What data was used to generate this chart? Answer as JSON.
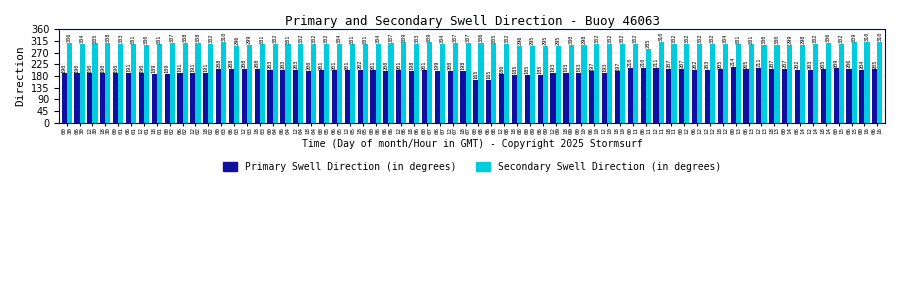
{
  "title": "Primary and Secondary Swell Direction - Buoy 46063",
  "xlabel": "Time (Day of month/Hour in GMT) - Copyright 2025 Stormsurf",
  "ylabel": "Direction",
  "ylim": [
    0,
    360
  ],
  "yticks": [
    0,
    45,
    90,
    135,
    180,
    225,
    270,
    315,
    360
  ],
  "primary_color": "#1010A0",
  "secondary_color": "#00CCDD",
  "background_color": "#FFFFFF",
  "primary_label": "Primary Swell Direction (in degrees)",
  "secondary_label": "Secondary Swell Direction (in degrees)",
  "primary_values": [
    190,
    190,
    190,
    190,
    190,
    191,
    190,
    189,
    189,
    191,
    191,
    191,
    208,
    208,
    208,
    208,
    203,
    203,
    203,
    200,
    201,
    201,
    201,
    202,
    201,
    200,
    201,
    198,
    201,
    199,
    200,
    198,
    165,
    165,
    186,
    185,
    185,
    185,
    193,
    193,
    193,
    197,
    193,
    197,
    210,
    210,
    211,
    207,
    207,
    202,
    203,
    205,
    214,
    205,
    211,
    207,
    207,
    202,
    203,
    205,
    209,
    206,
    204,
    205
  ],
  "secondary_values": [
    306,
    304,
    305,
    308,
    303,
    301,
    300,
    301,
    307,
    308,
    308,
    302,
    310,
    296,
    299,
    301,
    302,
    301,
    302,
    302,
    302,
    304,
    301,
    301,
    304,
    307,
    309,
    303,
    309,
    304,
    307,
    307,
    306,
    305,
    302,
    296,
    295,
    295,
    295,
    300,
    298,
    302,
    302,
    302,
    302,
    285,
    310,
    302,
    302,
    302,
    302,
    304,
    301,
    301,
    300,
    300,
    299,
    298,
    302,
    306,
    302,
    309,
    310,
    310
  ],
  "days": [
    "30",
    "30",
    "30",
    "30",
    "01",
    "01",
    "01",
    "01",
    "02",
    "02",
    "02",
    "02",
    "03",
    "03",
    "03",
    "03",
    "04",
    "04",
    "04",
    "04",
    "05",
    "05",
    "05",
    "05",
    "06",
    "06",
    "06",
    "06",
    "07",
    "07",
    "07",
    "07",
    "08",
    "08",
    "08",
    "08",
    "09",
    "09",
    "09",
    "09",
    "10",
    "10",
    "10",
    "10",
    "11",
    "11",
    "11",
    "11",
    "12",
    "12",
    "12",
    "12",
    "13",
    "13",
    "13",
    "13",
    "14",
    "14",
    "14",
    "14",
    "15",
    "15",
    "16",
    "16"
  ],
  "hours": [
    "00",
    "06",
    "12",
    "18",
    "00",
    "06",
    "12",
    "18",
    "00",
    "06",
    "12",
    "18",
    "00",
    "06",
    "12",
    "18",
    "00",
    "06",
    "12",
    "18",
    "00",
    "06",
    "12",
    "18",
    "00",
    "06",
    "12",
    "18",
    "00",
    "06",
    "12",
    "18",
    "00",
    "06",
    "12",
    "18",
    "00",
    "06",
    "12",
    "18",
    "00",
    "06",
    "12",
    "18",
    "00",
    "06",
    "12",
    "18",
    "00",
    "06",
    "12",
    "18",
    "00",
    "06",
    "12",
    "18",
    "00",
    "06",
    "12",
    "18",
    "00",
    "06",
    "00",
    "06"
  ]
}
